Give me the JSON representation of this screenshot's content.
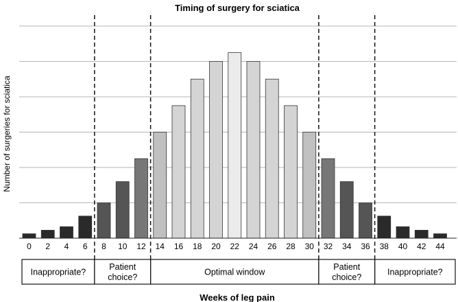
{
  "chart_data": {
    "type": "bar",
    "title": "Timing of surgery for sciatica",
    "xlabel": "Weeks of leg pain",
    "ylabel": "Number of surgeries for sciatica",
    "categories": [
      "0",
      "2",
      "4",
      "6",
      "8",
      "10",
      "12",
      "14",
      "16",
      "18",
      "20",
      "22",
      "24",
      "26",
      "28",
      "30",
      "32",
      "34",
      "36",
      "38",
      "40",
      "42",
      "44"
    ],
    "values": [
      0.25,
      0.45,
      0.65,
      1.25,
      2.0,
      3.2,
      4.5,
      6.0,
      7.5,
      9.0,
      10.0,
      10.5,
      10.0,
      9.0,
      7.5,
      6.0,
      4.5,
      3.2,
      2.0,
      1.25,
      0.65,
      0.45,
      0.25
    ],
    "ylim": [
      0,
      12
    ],
    "y_ticks_labeled": false,
    "grid": "horizontal",
    "bar_colors": [
      "#2a2a2a",
      "#2a2a2a",
      "#2a2a2a",
      "#2a2a2a",
      "#555555",
      "#555555",
      "#777777",
      "#c0c0c0",
      "#d4d4d4",
      "#d4d4d4",
      "#d4d4d4",
      "#ebebeb",
      "#d4d4d4",
      "#d4d4d4",
      "#d4d4d4",
      "#c0c0c0",
      "#777777",
      "#555555",
      "#555555",
      "#2a2a2a",
      "#2a2a2a",
      "#2a2a2a",
      "#2a2a2a"
    ],
    "zones": [
      {
        "label": [
          "Inappropriate?"
        ],
        "from_week": 0,
        "to_week": 7
      },
      {
        "label": [
          "Patient",
          "choice?"
        ],
        "from_week": 7,
        "to_week": 13
      },
      {
        "label": [
          "Optimal window"
        ],
        "from_week": 13,
        "to_week": 31
      },
      {
        "label": [
          "Patient",
          "choice?"
        ],
        "from_week": 31,
        "to_week": 37
      },
      {
        "label": [
          "Inappropriate?"
        ],
        "from_week": 37,
        "to_week": 45
      }
    ],
    "zone_boundaries_weeks": [
      7,
      13,
      31,
      37
    ]
  }
}
